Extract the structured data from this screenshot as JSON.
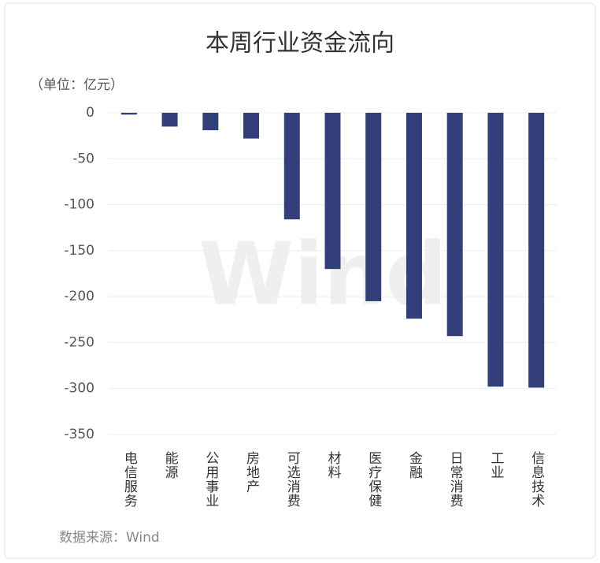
{
  "chart_data": {
    "type": "bar",
    "title": "本周行业资金流向",
    "unit_label": "（单位：亿元）",
    "source": "数据来源：Wind",
    "watermark": "Wind",
    "categories": [
      "电信服务",
      "能源",
      "公用事业",
      "房地产",
      "可选消费",
      "材料",
      "医疗保健",
      "金融",
      "日常消费",
      "工业",
      "信息技术"
    ],
    "values": [
      -2,
      -15,
      -19,
      -28,
      -116,
      -170,
      -205,
      -224,
      -243,
      -298,
      -299
    ],
    "color": "#323f78",
    "ylim": [
      -350,
      0
    ],
    "yticks": [
      0,
      -50,
      -100,
      -150,
      -200,
      -250,
      -300,
      -350
    ],
    "grid": true
  }
}
